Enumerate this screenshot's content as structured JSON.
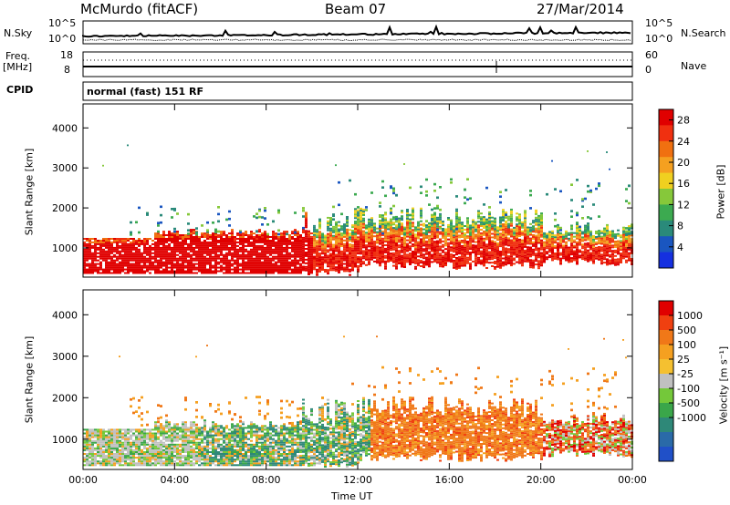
{
  "header": {
    "station": "McMurdo (fitACF)",
    "beam": "Beam 07",
    "date": "27/Mar/2014"
  },
  "summary": {
    "nsky_label": "N.Sky",
    "nsky_ticks": [
      "10^5",
      "10^0"
    ],
    "nsearch_label": "N.Search",
    "nsearch_ticks": [
      "10^5",
      "10^0"
    ],
    "freq_label": "Freq.",
    "freq_unit": "[MHz]",
    "freq_ticks": [
      "18",
      "8"
    ],
    "nave_label": "Nave",
    "nave_ticks": [
      "60",
      "0"
    ],
    "cpid_label": "CPID",
    "cpid_text": "normal (fast) 151 RF"
  },
  "chart_data": [
    {
      "type": "heatmap",
      "name": "power",
      "ylabel": "Slant Range [km]",
      "xlabel": "",
      "x_ticks": [
        "00:00",
        "04:00",
        "08:00",
        "12:00",
        "16:00",
        "20:00",
        "00:00"
      ],
      "y_ticks": [
        1000,
        2000,
        3000,
        4000
      ],
      "ylim": [
        270,
        4600
      ],
      "xlim_hours": [
        0,
        24
      ],
      "colorbar": {
        "label": "Power [dB]",
        "ticks": [
          4,
          8,
          12,
          16,
          20,
          24,
          28
        ],
        "range": [
          0,
          30
        ],
        "colors": [
          "#1530e0",
          "#1a56c0",
          "#2a8a7a",
          "#3caa50",
          "#86c83a",
          "#f0d020",
          "#f5a020",
          "#f07010",
          "#f03010",
          "#e00000"
        ]
      }
    },
    {
      "type": "heatmap",
      "name": "velocity",
      "ylabel": "Slant Range [km]",
      "xlabel": "Time UT",
      "x_ticks": [
        "00:00",
        "04:00",
        "08:00",
        "12:00",
        "16:00",
        "20:00",
        "00:00"
      ],
      "y_ticks": [
        1000,
        2000,
        3000,
        4000
      ],
      "ylim": [
        270,
        4600
      ],
      "xlim_hours": [
        0,
        24
      ],
      "colorbar": {
        "label": "Velocity [m s⁻¹]",
        "ticks": [
          "1000",
          "500",
          "100",
          "25",
          "-25",
          "-100",
          "-500",
          "-1000"
        ],
        "colors": [
          "#2050c8",
          "#2a6aa8",
          "#2e8878",
          "#3aa64a",
          "#74c83a",
          "#c0c0c0",
          "#f5c030",
          "#f5a020",
          "#f07818",
          "#f04010",
          "#e00000"
        ]
      }
    }
  ]
}
